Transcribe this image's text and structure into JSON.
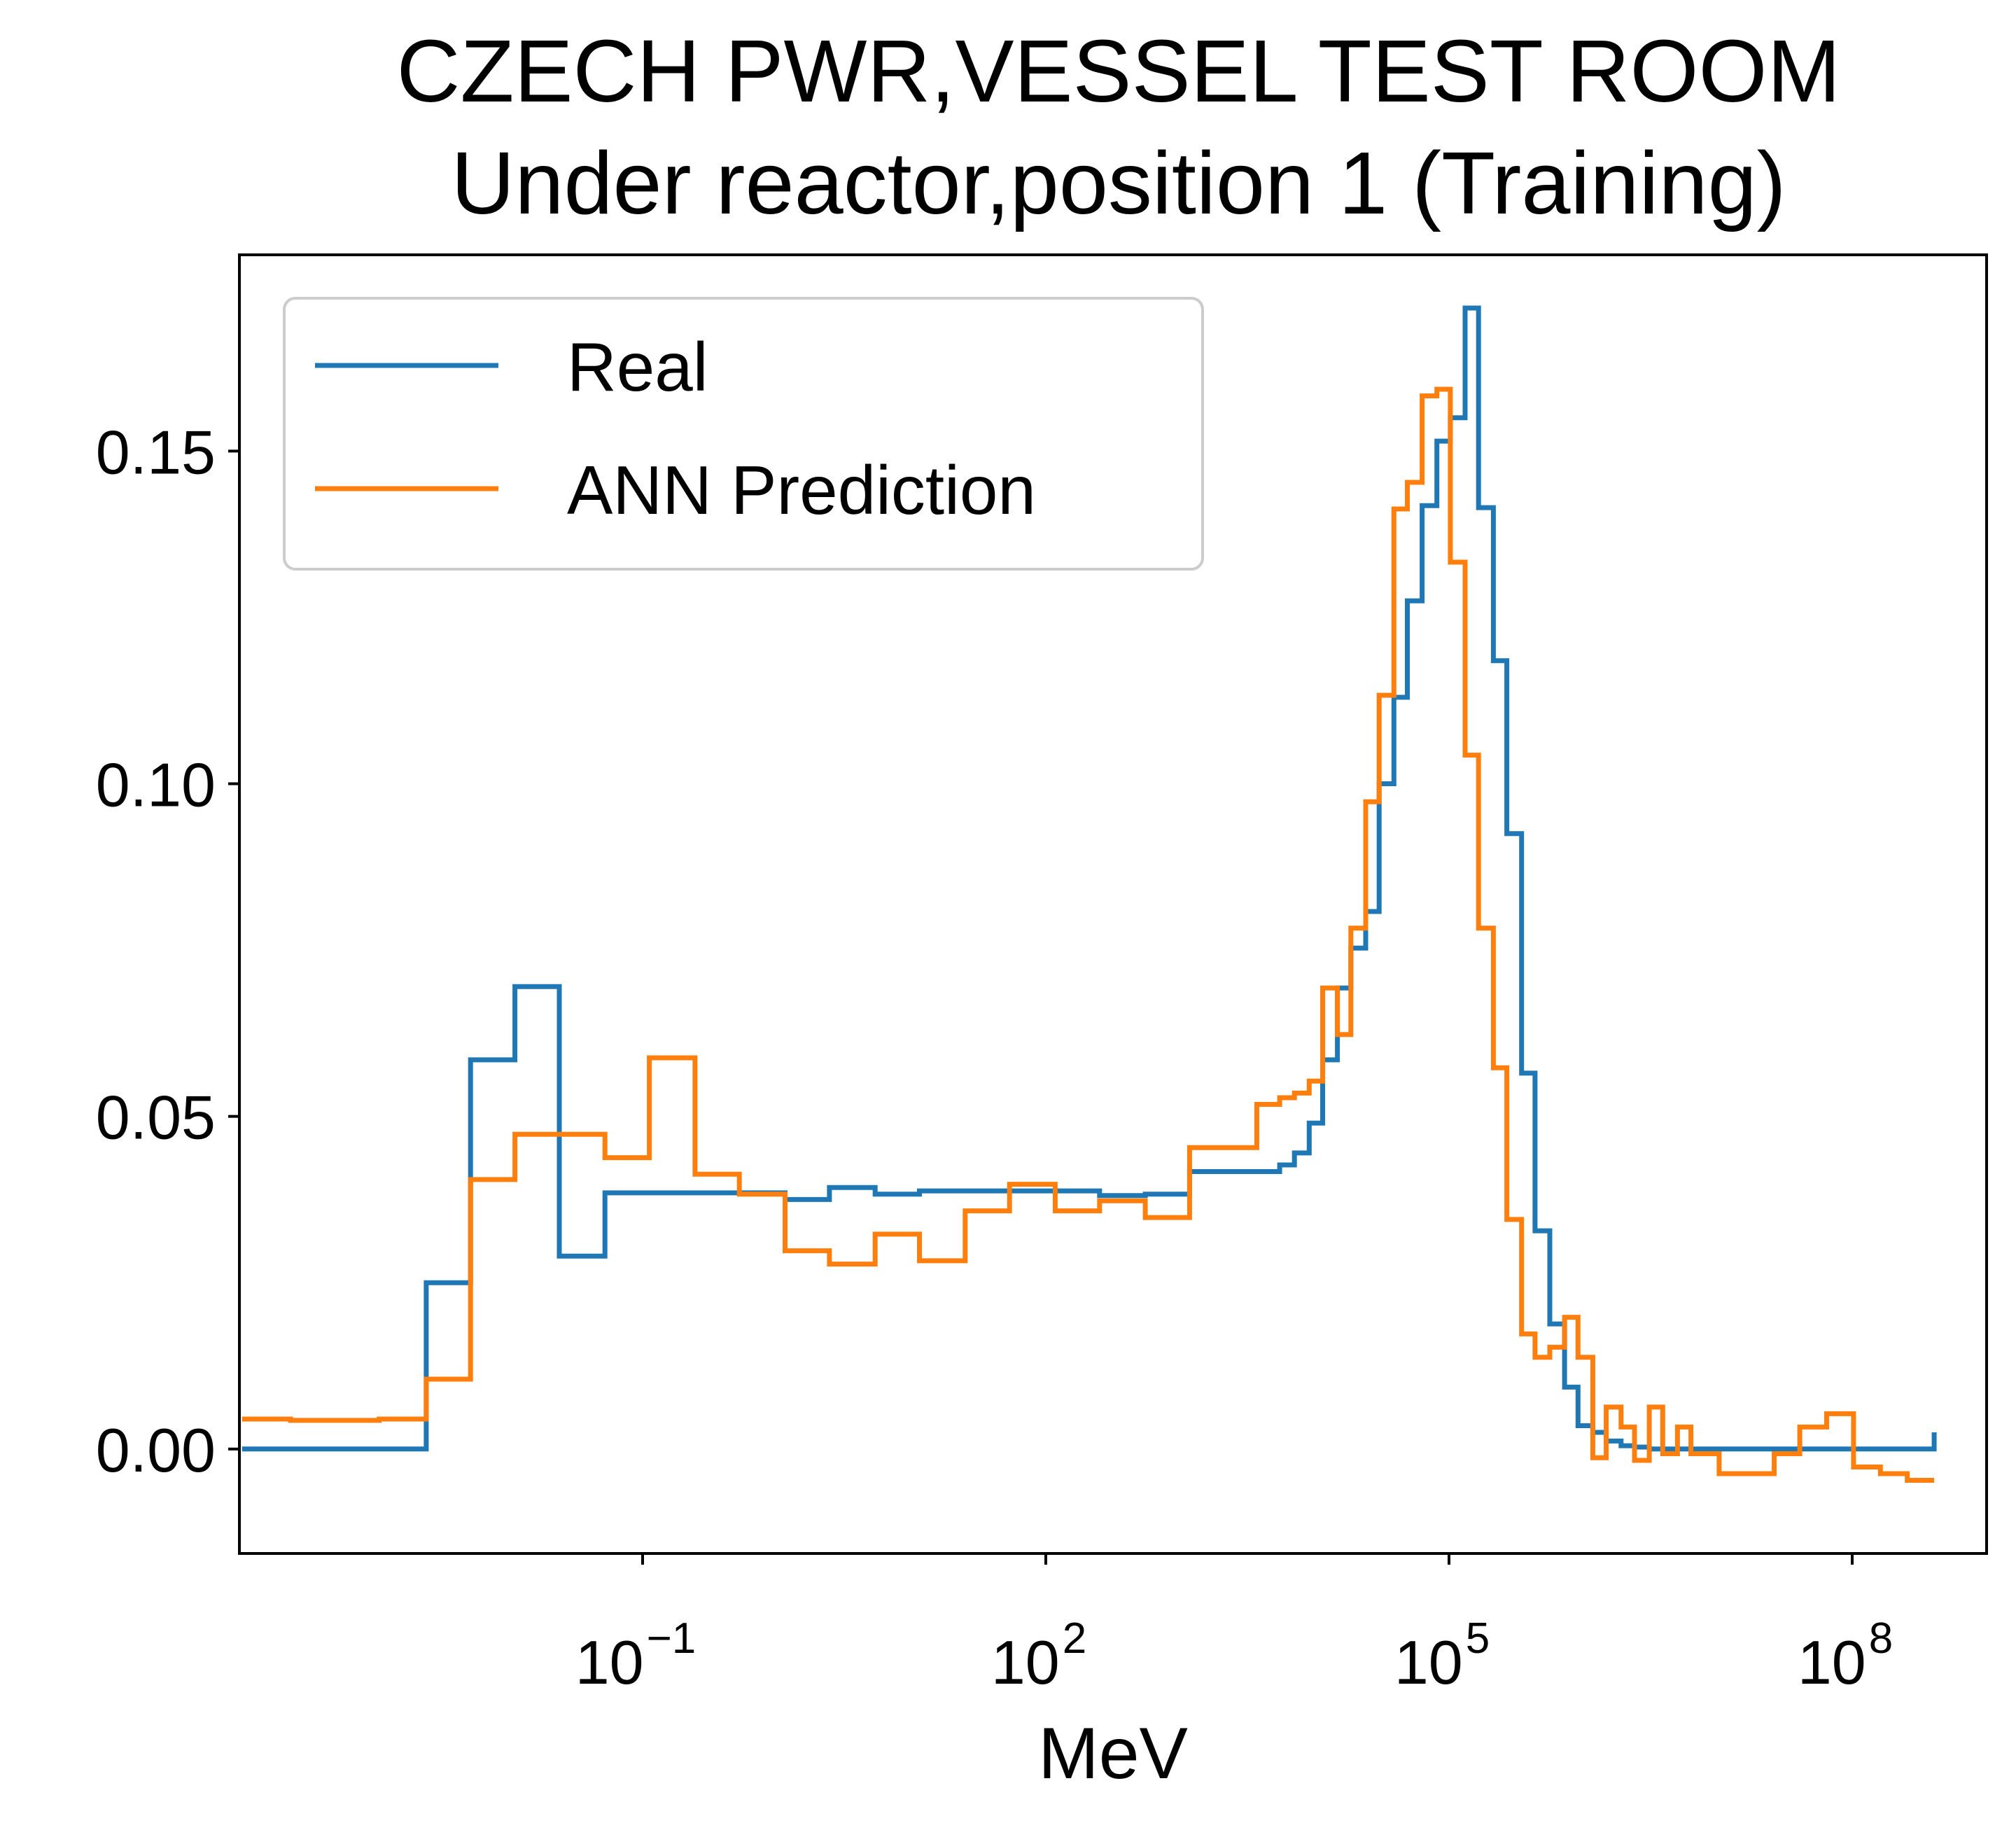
{
  "chart_data": {
    "type": "line",
    "drawstyle": "steps",
    "title": "CZECH PWR,VESSEL TEST ROOM",
    "subtitle": "Under reactor,position 1 (Training)",
    "xlabel": "MeV",
    "ylabel": "",
    "xscale": "log",
    "xlim": [
      0.0001,
      1000000000.0
    ],
    "ylim": [
      -0.0157,
      0.1795
    ],
    "x_ticks": [
      {
        "base": "10",
        "exp": "−1",
        "value": 0.1
      },
      {
        "base": "10",
        "exp": "2",
        "value": 100
      },
      {
        "base": "10",
        "exp": "5",
        "value": 100000
      },
      {
        "base": "10",
        "exp": "8",
        "value": 100000000
      }
    ],
    "y_ticks": [
      {
        "label": "0.00",
        "value": 0.0
      },
      {
        "label": "0.05",
        "value": 0.05
      },
      {
        "label": "0.10",
        "value": 0.1
      },
      {
        "label": "0.15",
        "value": 0.15
      }
    ],
    "grid": false,
    "legend_position": "top-left",
    "series": [
      {
        "name": "Real",
        "color": "#1f77b4",
        "x": [
          -3.98,
          -2.96,
          -2.61,
          -2.28,
          -1.95,
          -1.62,
          -1.28,
          -0.95,
          -0.61,
          -0.28,
          0.06,
          0.39,
          0.73,
          1.06,
          1.4,
          1.73,
          2.07,
          2.4,
          2.74,
          3.07,
          3.41,
          3.74,
          3.85,
          3.96,
          4.06,
          4.17,
          4.27,
          4.38,
          4.48,
          4.59,
          4.69,
          4.8,
          4.91,
          5.01,
          5.12,
          5.22,
          5.33,
          5.43,
          5.54,
          5.64,
          5.75,
          5.86,
          5.96,
          6.07,
          6.17,
          6.28,
          6.38,
          6.49,
          6.59,
          6.7,
          6.8,
          8.61
        ],
        "y": [
          0.0,
          0.0,
          0.025,
          0.0585,
          0.0695,
          0.029,
          0.0385,
          0.0385,
          0.0385,
          0.0385,
          0.0375,
          0.0393,
          0.0383,
          0.0388,
          0.0388,
          0.0388,
          0.0388,
          0.0381,
          0.0383,
          0.0417,
          0.0417,
          0.0427,
          0.0445,
          0.049,
          0.0585,
          0.0693,
          0.0753,
          0.0808,
          0.1,
          0.113,
          0.1275,
          0.1418,
          0.1515,
          0.155,
          0.1715,
          0.1415,
          0.1185,
          0.0925,
          0.0565,
          0.0328,
          0.0188,
          0.0093,
          0.0035,
          0.0025,
          0.0012,
          0.0005,
          0.0003,
          0.0,
          0.0,
          0.0,
          0.0,
          0.0025
        ]
      },
      {
        "name": "ANN Prediction",
        "color": "#ff7f0e",
        "x": [
          -3.98,
          -3.62,
          -3.29,
          -2.96,
          -2.61,
          -2.28,
          -1.95,
          -1.62,
          -1.28,
          -0.95,
          -0.61,
          -0.28,
          0.06,
          0.39,
          0.73,
          1.06,
          1.4,
          1.73,
          2.07,
          2.4,
          2.74,
          3.07,
          3.41,
          3.57,
          3.74,
          3.85,
          3.96,
          4.06,
          4.17,
          4.27,
          4.38,
          4.48,
          4.59,
          4.69,
          4.8,
          4.91,
          5.01,
          5.12,
          5.22,
          5.33,
          5.43,
          5.54,
          5.64,
          5.75,
          5.86,
          5.96,
          6.07,
          6.17,
          6.28,
          6.38,
          6.49,
          6.59,
          6.7,
          6.8,
          7.01,
          7.42,
          7.61,
          7.81,
          8.01,
          8.21,
          8.41,
          8.61
        ],
        "y": [
          0.0045,
          0.0043,
          0.0043,
          0.0045,
          0.0105,
          0.0405,
          0.0473,
          0.0473,
          0.0438,
          0.0588,
          0.0413,
          0.0383,
          0.0298,
          0.0278,
          0.0323,
          0.0283,
          0.0358,
          0.0398,
          0.0358,
          0.0373,
          0.0348,
          0.0453,
          0.0453,
          0.0518,
          0.0528,
          0.0535,
          0.0553,
          0.0693,
          0.0623,
          0.0783,
          0.0973,
          0.1133,
          0.1413,
          0.1453,
          0.1583,
          0.1593,
          0.1333,
          0.1043,
          0.0783,
          0.0573,
          0.0345,
          0.0173,
          0.0138,
          0.0153,
          0.0198,
          0.0138,
          -0.0013,
          0.0063,
          0.0033,
          -0.0017,
          0.0063,
          -0.0007,
          0.0033,
          -0.0007,
          -0.0037,
          -0.0007,
          0.0033,
          0.0053,
          -0.0027,
          -0.0037,
          -0.0047,
          -0.0047
        ]
      }
    ]
  }
}
